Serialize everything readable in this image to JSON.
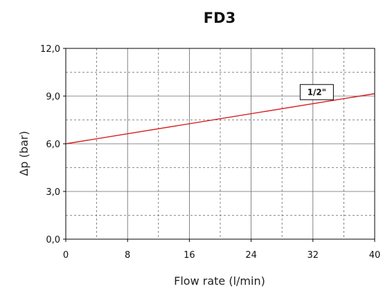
{
  "chart_data": {
    "type": "line",
    "title": "FD3",
    "xlabel": "Flow rate (l/min)",
    "ylabel": "Δp (bar)",
    "xlim": [
      0,
      40
    ],
    "ylim": [
      0,
      12
    ],
    "x_ticks": [
      "0",
      "8",
      "16",
      "24",
      "32",
      "40"
    ],
    "x_tick_values": [
      0,
      8,
      16,
      24,
      32,
      40
    ],
    "y_ticks": [
      "0,0",
      "3,0",
      "6,0",
      "9,0",
      "12,0"
    ],
    "y_tick_values": [
      0,
      3,
      6,
      9,
      12
    ],
    "x_minor_grid": [
      4,
      12,
      20,
      28,
      36
    ],
    "y_minor_grid": [
      1.5,
      4.5,
      7.5,
      10.5
    ],
    "grid": true,
    "series": [
      {
        "name": "1/2\"",
        "color": "#d62020",
        "x": [
          0,
          40
        ],
        "y": [
          6.0,
          9.15
        ]
      }
    ],
    "annotations": [
      {
        "text": "1/2\"",
        "x": 32.5,
        "y": 9.25,
        "boxed": true
      }
    ]
  }
}
